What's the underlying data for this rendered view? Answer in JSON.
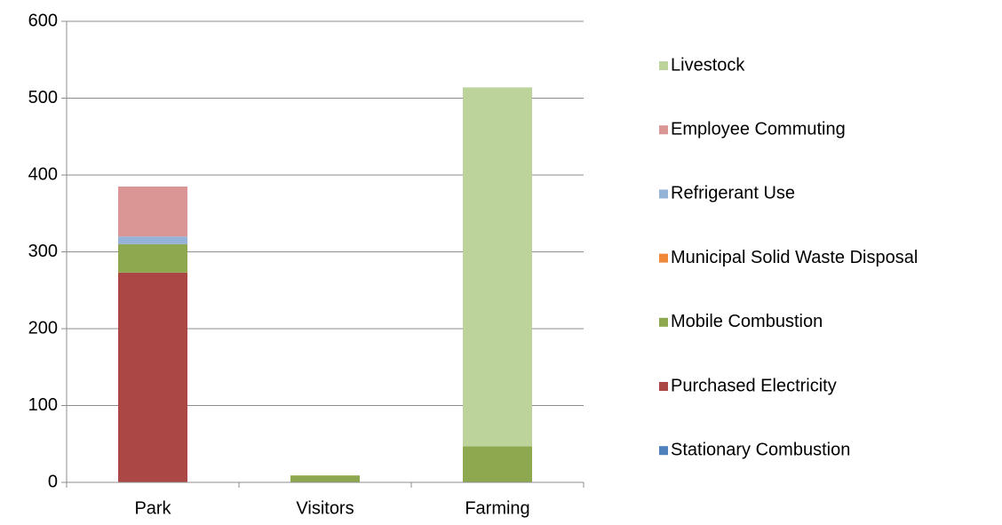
{
  "chart_data": {
    "type": "stacked_bar",
    "categories": [
      "Park",
      "Visitors",
      "Farming"
    ],
    "series": [
      {
        "name": "Stationary Combustion",
        "color": "#4f81bd",
        "values": [
          0,
          0,
          0
        ]
      },
      {
        "name": "Purchased Electricity",
        "color": "#ab4744",
        "values": [
          273,
          0,
          0
        ]
      },
      {
        "name": "Mobile Combustion",
        "color": "#8ea84f",
        "values": [
          37,
          9,
          47
        ]
      },
      {
        "name": "Municipal Solid Waste Disposal",
        "color": "#f0883a",
        "values": [
          0,
          0,
          0
        ]
      },
      {
        "name": "Refrigerant Use",
        "color": "#95b3d7",
        "values": [
          10,
          0,
          0
        ]
      },
      {
        "name": "Employee Commuting",
        "color": "#d99694",
        "values": [
          65,
          0,
          0
        ]
      },
      {
        "name": "Livestock",
        "color": "#bcd39c",
        "values": [
          0,
          0,
          467
        ]
      }
    ],
    "ylim": [
      0,
      600
    ],
    "yticks": [
      0,
      100,
      200,
      300,
      400,
      500,
      600
    ],
    "grid": true,
    "legend": "right"
  }
}
